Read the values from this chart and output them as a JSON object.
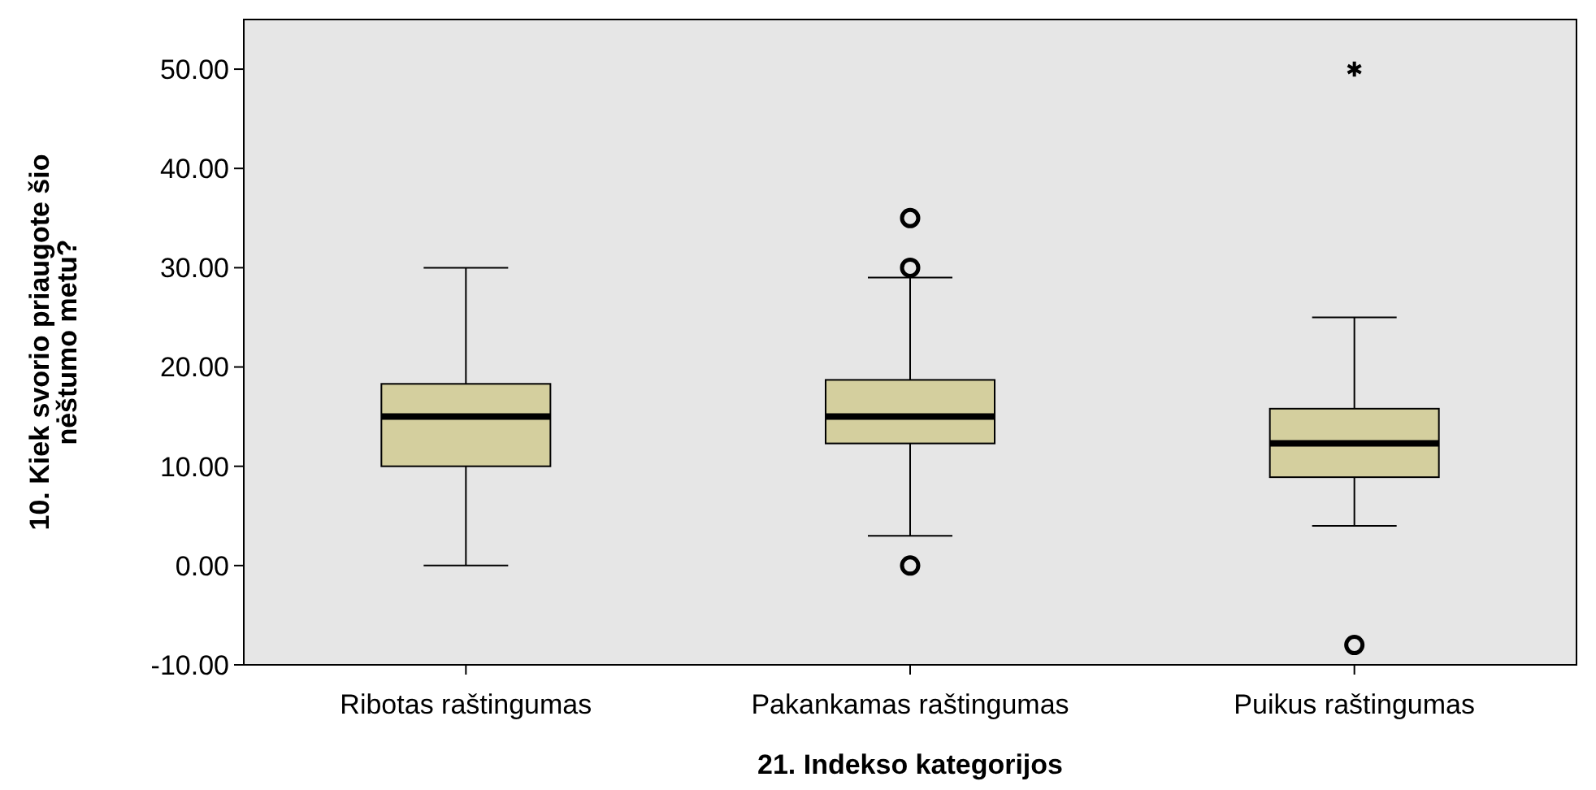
{
  "chart_data": {
    "type": "box",
    "xlabel": "21. Indekso kategorijos",
    "ylabel": "10. Kiek svorio priaugote šio\nnėštumo metu?",
    "categories": [
      "Ribotas raštingumas",
      "Pakankamas raštingumas",
      "Puikus raštingumas"
    ],
    "color": "#d4cf9e",
    "boxes": [
      {
        "low": 0,
        "q1": 10,
        "median": 15,
        "q3": 18.3,
        "high": 30
      },
      {
        "low": 3,
        "q1": 12.3,
        "median": 15,
        "q3": 18.7,
        "high": 29,
        "outliers": [
          35,
          30,
          0
        ]
      },
      {
        "low": 4,
        "q1": 8.9,
        "median": 12.3,
        "q3": 15.8,
        "high": 25,
        "outliers": [
          50,
          -8
        ]
      }
    ],
    "ylim": [
      -10,
      55
    ],
    "yticks": [
      {
        "value": -10,
        "label": "-10.00"
      },
      {
        "value": 0,
        "label": "0.00"
      },
      {
        "value": 10,
        "label": "10.00"
      },
      {
        "value": 20,
        "label": "20.00"
      },
      {
        "value": 30,
        "label": "30.00"
      },
      {
        "value": 40,
        "label": "40.00"
      },
      {
        "value": 50,
        "label": "50.00"
      }
    ]
  }
}
